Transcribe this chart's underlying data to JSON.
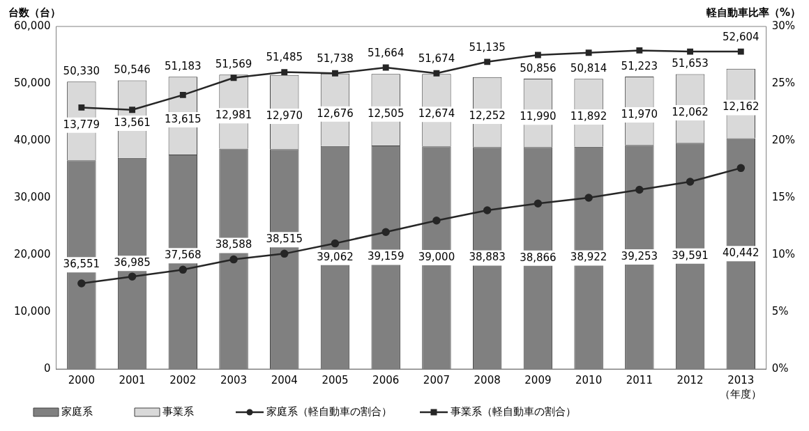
{
  "chart_data": {
    "type": "bar",
    "stacked": true,
    "ylabel": "台数（台）",
    "y2label": "軽自動車比率（%）",
    "xlabel": "（年度）",
    "categories": [
      "2000",
      "2001",
      "2002",
      "2003",
      "2004",
      "2005",
      "2006",
      "2007",
      "2008",
      "2009",
      "2010",
      "2011",
      "2012",
      "2013"
    ],
    "series": [
      {
        "name": "家庭系",
        "color": "#808080",
        "values": [
          36551,
          36985,
          37568,
          38588,
          38515,
          39062,
          39159,
          39000,
          38883,
          38866,
          38922,
          39253,
          39591,
          40442
        ],
        "value_labels": [
          "36,551",
          "36,985",
          "37,568",
          "38,588",
          "38,515",
          "39,062",
          "39,159",
          "39,000",
          "38,883",
          "38,866",
          "38,922",
          "39,253",
          "39,591",
          "40,442"
        ]
      },
      {
        "name": "事業系",
        "color": "#d9d9d9",
        "values": [
          13779,
          13561,
          13615,
          12981,
          12970,
          12676,
          12505,
          12674,
          12252,
          11990,
          11892,
          11970,
          12062,
          12162
        ],
        "value_labels": [
          "13,779",
          "13,561",
          "13,615",
          "12,981",
          "12,970",
          "12,676",
          "12,505",
          "12,674",
          "12,252",
          "11,990",
          "11,892",
          "11,970",
          "12,062",
          "12,162"
        ]
      },
      {
        "name": "家庭系（軽自動車の割合）",
        "type": "line",
        "axis": "y2",
        "marker": "circle",
        "color": "#262626",
        "values": [
          7.5,
          8.1,
          8.7,
          9.6,
          10.1,
          11.0,
          12.0,
          13.0,
          13.9,
          14.5,
          15.0,
          15.7,
          16.4,
          17.6
        ]
      },
      {
        "name": "事業系（軽自動車の割合）",
        "type": "line",
        "axis": "y2",
        "marker": "square",
        "color": "#262626",
        "values": [
          22.9,
          22.7,
          24.0,
          25.5,
          26.0,
          25.9,
          26.4,
          25.9,
          26.9,
          27.5,
          27.7,
          27.9,
          27.8,
          27.8
        ]
      }
    ],
    "totals": [
      "50,330",
      "50,546",
      "51,183",
      "51,569",
      "51,485",
      "51,738",
      "51,664",
      "51,674",
      "51,135",
      "50,856",
      "50,814",
      "51,223",
      "51,653",
      "52,604"
    ],
    "ylim": [
      0,
      60000
    ],
    "yticks": [
      {
        "value": 0,
        "label": "0"
      },
      {
        "value": 10000,
        "label": "10,000"
      },
      {
        "value": 20000,
        "label": "20,000"
      },
      {
        "value": 30000,
        "label": "30,000"
      },
      {
        "value": 40000,
        "label": "40,000"
      },
      {
        "value": 50000,
        "label": "50,000"
      },
      {
        "value": 60000,
        "label": "60,000"
      }
    ],
    "y2lim": [
      0,
      30
    ],
    "y2ticks": [
      {
        "value": 0,
        "label": "0%"
      },
      {
        "value": 5,
        "label": "5%"
      },
      {
        "value": 10,
        "label": "10%"
      },
      {
        "value": 15,
        "label": "15%"
      },
      {
        "value": 20,
        "label": "20%"
      },
      {
        "value": 25,
        "label": "25%"
      },
      {
        "value": 30,
        "label": "30%"
      }
    ],
    "grid": false,
    "legend": "bottom"
  }
}
